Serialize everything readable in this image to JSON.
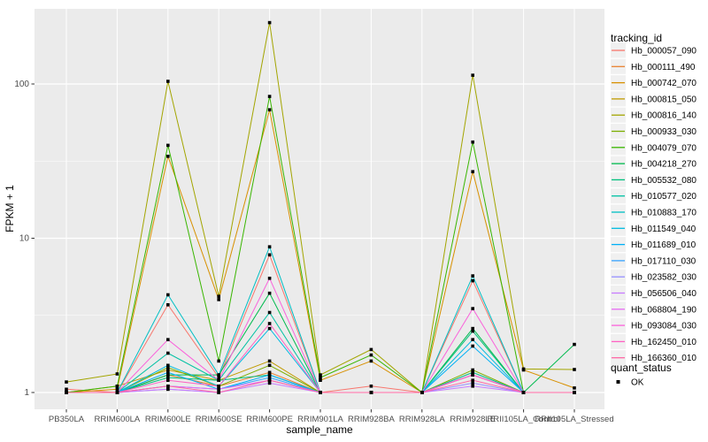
{
  "chart_data": {
    "type": "line",
    "title": "",
    "xlabel": "sample_name",
    "ylabel": "FPKM + 1",
    "y_scale": "log10",
    "y_ticks": [
      1,
      10,
      100
    ],
    "ylim": [
      1,
      300
    ],
    "grid": true,
    "legend_position": "right",
    "point_marker": "black-square",
    "categories": [
      "PB350LA",
      "RRIM600LA",
      "RRIM600LE",
      "RRIM600SE",
      "RRIM600PE",
      "RRIM901LA",
      "RRIM928BA",
      "RRIM928LA",
      "RRIM928LE",
      "RRII105LA_Control",
      "RRII105LA_Stressed"
    ],
    "series": [
      {
        "name": "Hb_000057_090",
        "color": "#F8766D",
        "values": [
          1.05,
          1.0,
          3.7,
          1.25,
          7.8,
          1.0,
          1.1,
          1.0,
          5.3,
          1.0,
          1.0
        ]
      },
      {
        "name": "Hb_000111_490",
        "color": "#EA8331",
        "values": [
          1.0,
          1.0,
          1.3,
          1.1,
          1.35,
          1.0,
          1.0,
          1.0,
          1.3,
          1.0,
          1.0
        ]
      },
      {
        "name": "Hb_000742_070",
        "color": "#D89000",
        "values": [
          1.0,
          1.05,
          34,
          4.0,
          68,
          1.2,
          1.6,
          1.0,
          27,
          1.4,
          1.07
        ]
      },
      {
        "name": "Hb_000815_050",
        "color": "#C09B00",
        "values": [
          1.0,
          1.1,
          1.4,
          1.2,
          1.6,
          1.0,
          1.0,
          1.0,
          1.35,
          1.0,
          1.0
        ]
      },
      {
        "name": "Hb_000816_140",
        "color": "#A3A500",
        "values": [
          1.17,
          1.32,
          104,
          4.2,
          250,
          1.3,
          1.9,
          1.0,
          114,
          1.42,
          1.41
        ]
      },
      {
        "name": "Hb_000933_030",
        "color": "#7CAE00",
        "values": [
          1.0,
          1.0,
          1.45,
          1.1,
          1.5,
          1.0,
          1.0,
          1.0,
          1.4,
          1.0,
          1.0
        ]
      },
      {
        "name": "Hb_004079_070",
        "color": "#39B600",
        "values": [
          1.0,
          1.1,
          40,
          1.6,
          83,
          1.25,
          1.75,
          1.0,
          42,
          1.0,
          1.0
        ]
      },
      {
        "name": "Hb_004218_270",
        "color": "#00BB4E",
        "values": [
          1.0,
          1.0,
          1.3,
          1.3,
          4.4,
          1.0,
          1.0,
          1.0,
          2.6,
          1.0,
          2.05
        ]
      },
      {
        "name": "Hb_005532_080",
        "color": "#00BF7D",
        "values": [
          1.0,
          1.0,
          1.25,
          1.2,
          1.3,
          1.0,
          1.0,
          1.0,
          2.5,
          1.0,
          1.0
        ]
      },
      {
        "name": "Hb_010577_020",
        "color": "#00C1A3",
        "values": [
          1.0,
          1.0,
          1.8,
          1.2,
          3.3,
          1.0,
          1.0,
          1.0,
          1.35,
          1.0,
          1.0
        ]
      },
      {
        "name": "Hb_010883_170",
        "color": "#00BFC4",
        "values": [
          1.0,
          1.0,
          4.3,
          1.3,
          8.8,
          1.0,
          1.0,
          1.0,
          5.7,
          1.0,
          1.0
        ]
      },
      {
        "name": "Hb_011549_040",
        "color": "#00BAE0",
        "values": [
          1.0,
          1.0,
          1.5,
          1.1,
          2.6,
          1.0,
          1.0,
          1.0,
          2.2,
          1.0,
          1.0
        ]
      },
      {
        "name": "Hb_011689_010",
        "color": "#00B0F6",
        "values": [
          1.0,
          1.0,
          1.35,
          1.05,
          1.3,
          1.0,
          1.0,
          1.0,
          2.0,
          1.0,
          1.0
        ]
      },
      {
        "name": "Hb_017110_030",
        "color": "#35A2FF",
        "values": [
          1.0,
          1.0,
          1.1,
          1.05,
          1.25,
          1.0,
          1.0,
          1.0,
          1.3,
          1.0,
          1.0
        ]
      },
      {
        "name": "Hb_023582_030",
        "color": "#9590FF",
        "values": [
          1.0,
          1.0,
          1.05,
          1.0,
          1.2,
          1.0,
          1.0,
          1.0,
          1.15,
          1.0,
          1.0
        ]
      },
      {
        "name": "Hb_056506_040",
        "color": "#C77CFF",
        "values": [
          1.0,
          1.0,
          1.05,
          1.0,
          1.15,
          1.0,
          1.0,
          1.0,
          1.1,
          1.0,
          1.0
        ]
      },
      {
        "name": "Hb_068804_190",
        "color": "#E76BF3",
        "values": [
          1.0,
          1.0,
          1.1,
          1.05,
          1.2,
          1.0,
          1.0,
          1.0,
          1.3,
          1.0,
          1.0
        ]
      },
      {
        "name": "Hb_093084_030",
        "color": "#FA62DB",
        "values": [
          1.0,
          1.0,
          2.2,
          1.2,
          5.5,
          1.0,
          1.0,
          1.0,
          3.5,
          1.0,
          1.0
        ]
      },
      {
        "name": "Hb_162450_010",
        "color": "#FF61C3",
        "values": [
          1.0,
          1.0,
          1.2,
          1.1,
          2.8,
          1.0,
          1.0,
          1.0,
          1.3,
          1.0,
          1.0
        ]
      },
      {
        "name": "Hb_166360_010",
        "color": "#FF67A4",
        "values": [
          1.0,
          1.0,
          1.1,
          1.0,
          1.2,
          1.0,
          1.0,
          1.0,
          1.2,
          1.0,
          1.0
        ]
      }
    ]
  },
  "legend": {
    "tracking_title": "tracking_id",
    "quant_title": "quant_status",
    "quant_items": [
      {
        "label": "OK",
        "marker": "black-square"
      }
    ]
  },
  "colors": {
    "panel_bg": "#EBEBEB",
    "grid_line": "#FFFFFF",
    "legend_key_bg": "#F0F0F0",
    "point": "#000000",
    "tick_label": "#4D4D4D",
    "tick_mark": "#333333",
    "axis_title": "#000000"
  }
}
